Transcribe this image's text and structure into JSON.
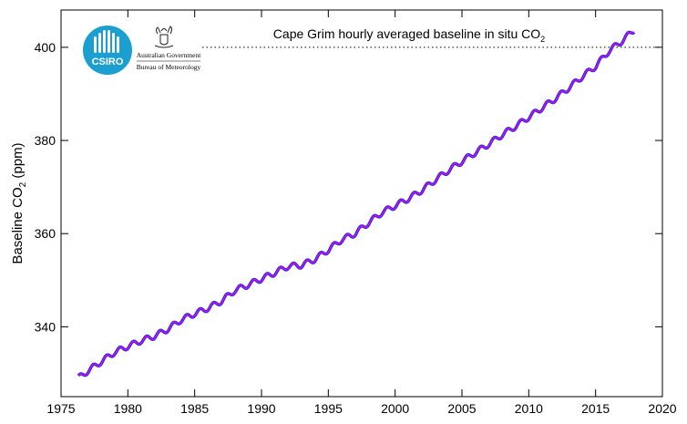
{
  "branding": {
    "csiro_label": "CSIRO",
    "gov_line1": "Australian Government",
    "gov_line2": "Bureau of Meteorology",
    "csiro_color": "#1a9fd0"
  },
  "chart_data": {
    "type": "line",
    "title": "Cape Grim hourly averaged baseline in situ CO",
    "title_subscript": "2",
    "ylabel_main": "Baseline CO",
    "ylabel_sub": "2",
    "ylabel_unit": " (ppm)",
    "xlim": [
      1975,
      2020
    ],
    "ylim": [
      325,
      408
    ],
    "x_ticks": [
      1975,
      1980,
      1985,
      1990,
      1995,
      2000,
      2005,
      2010,
      2015,
      2020
    ],
    "y_ticks": [
      340,
      360,
      380,
      400
    ],
    "reference_line": {
      "y": 400,
      "style": "dotted"
    },
    "series": [
      {
        "color": "#2b2bd6",
        "highlight_color": "#ff00ff",
        "trend_points": [
          [
            1976.3,
            329.0
          ],
          [
            1977.0,
            330.5
          ],
          [
            1978.0,
            332.5
          ],
          [
            1979.0,
            334.5
          ],
          [
            1980.0,
            335.8
          ],
          [
            1981.0,
            337.0
          ],
          [
            1982.0,
            338.0
          ],
          [
            1983.0,
            339.5
          ],
          [
            1984.0,
            341.5
          ],
          [
            1985.0,
            342.8
          ],
          [
            1986.0,
            344.0
          ],
          [
            1987.0,
            345.5
          ],
          [
            1988.0,
            347.8
          ],
          [
            1989.0,
            349.0
          ],
          [
            1990.0,
            350.3
          ],
          [
            1991.0,
            351.6
          ],
          [
            1992.0,
            353.0
          ],
          [
            1993.0,
            353.2
          ],
          [
            1994.0,
            354.5
          ],
          [
            1995.0,
            356.5
          ],
          [
            1996.0,
            358.7
          ],
          [
            1997.0,
            360.0
          ],
          [
            1998.0,
            362.3
          ],
          [
            1999.0,
            364.5
          ],
          [
            2000.0,
            366.0
          ],
          [
            2001.0,
            367.5
          ],
          [
            2002.0,
            369.3
          ],
          [
            2003.0,
            371.5
          ],
          [
            2004.0,
            373.6
          ],
          [
            2005.0,
            375.5
          ],
          [
            2006.0,
            377.4
          ],
          [
            2007.0,
            379.2
          ],
          [
            2008.0,
            381.2
          ],
          [
            2009.0,
            383.0
          ],
          [
            2010.0,
            385.0
          ],
          [
            2011.0,
            387.0
          ],
          [
            2012.0,
            389.0
          ],
          [
            2013.0,
            391.3
          ],
          [
            2014.0,
            393.7
          ],
          [
            2015.0,
            395.9
          ],
          [
            2016.0,
            399.2
          ],
          [
            2017.0,
            401.4
          ],
          [
            2017.9,
            403.8
          ]
        ],
        "seasonal_amplitude": 0.6
      }
    ],
    "grid": false,
    "legend": "none"
  }
}
